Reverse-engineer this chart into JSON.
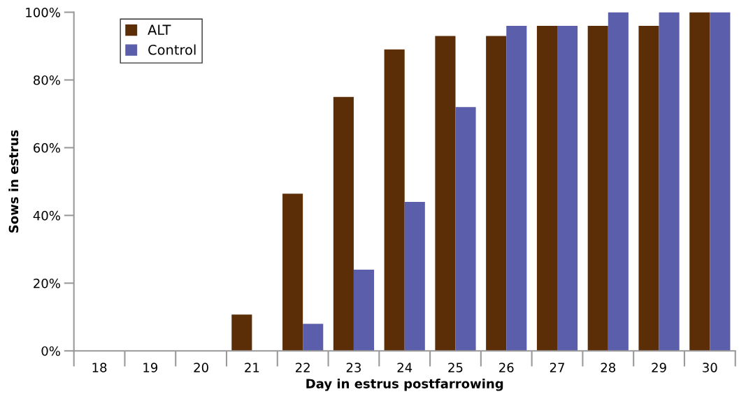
{
  "chart_data": {
    "type": "bar",
    "xlabel": "Day in estrus postfarrowing",
    "ylabel": "Sows in estrus",
    "categories": [
      "18",
      "19",
      "20",
      "21",
      "22",
      "23",
      "24",
      "25",
      "26",
      "27",
      "28",
      "29",
      "30"
    ],
    "series": [
      {
        "name": "ALT",
        "color": "#5c2e08",
        "values": [
          0,
          0,
          0,
          10.7,
          46.4,
          75,
          89,
          93,
          93,
          96,
          96,
          96,
          100
        ]
      },
      {
        "name": "Control",
        "color": "#5b5eab",
        "values": [
          0,
          0,
          0,
          0,
          8,
          24,
          44,
          72,
          96,
          96,
          100,
          100,
          100
        ]
      }
    ],
    "ylim": [
      0,
      100
    ],
    "yticks": [
      {
        "value": 0,
        "label": "0%"
      },
      {
        "value": 20,
        "label": "20%"
      },
      {
        "value": 40,
        "label": "40%"
      },
      {
        "value": 60,
        "label": "60%"
      },
      {
        "value": 80,
        "label": "80%"
      },
      {
        "value": 100,
        "label": "100%"
      }
    ],
    "grid": false,
    "legend": "top left"
  }
}
